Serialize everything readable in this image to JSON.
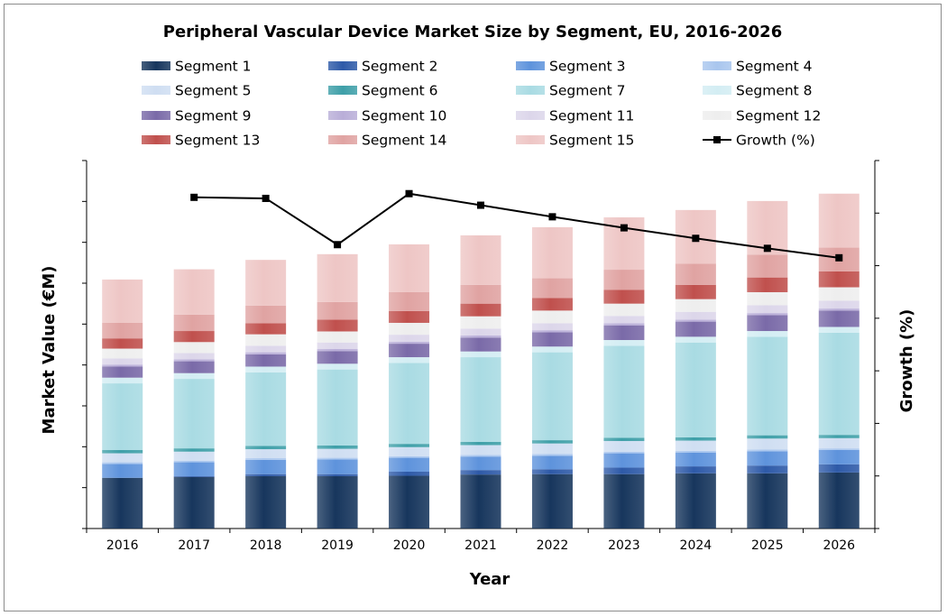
{
  "chart_data": {
    "type": "bar",
    "stacked": true,
    "title": "Peripheral Vascular Device Market Size by Segment, EU, 2016-2026",
    "xlabel": "Year",
    "ylabel": "Market Value (€M)",
    "y2label": "Growth (%)",
    "y_tick_labels_visible": false,
    "y2_tick_labels_visible": false,
    "ylim": [
      0,
      9
    ],
    "y2lim": [
      0,
      7
    ],
    "legend_position": "top",
    "categories": [
      "2016",
      "2017",
      "2018",
      "2019",
      "2020",
      "2021",
      "2022",
      "2023",
      "2024",
      "2025",
      "2026"
    ],
    "series": [
      {
        "name": "Segment 1",
        "color": "#17365d",
        "values": [
          1.24,
          1.26,
          1.28,
          1.28,
          1.29,
          1.32,
          1.33,
          1.33,
          1.35,
          1.35,
          1.37
        ]
      },
      {
        "name": "Segment 2",
        "color": "#2e5aa8",
        "values": [
          0.0,
          0.02,
          0.05,
          0.05,
          0.1,
          0.11,
          0.12,
          0.16,
          0.17,
          0.19,
          0.2
        ]
      },
      {
        "name": "Segment 3",
        "color": "#5e93dc",
        "values": [
          0.34,
          0.34,
          0.35,
          0.36,
          0.34,
          0.33,
          0.33,
          0.35,
          0.34,
          0.35,
          0.35
        ]
      },
      {
        "name": "Segment 4",
        "color": "#a9c6ee",
        "values": [
          0.04,
          0.04,
          0.04,
          0.04,
          0.04,
          0.04,
          0.04,
          0.04,
          0.04,
          0.04,
          0.04
        ]
      },
      {
        "name": "Segment 5",
        "color": "#cfdef2",
        "values": [
          0.22,
          0.22,
          0.22,
          0.22,
          0.22,
          0.24,
          0.26,
          0.26,
          0.25,
          0.27,
          0.25
        ]
      },
      {
        "name": "Segment 6",
        "color": "#3e9fa8",
        "values": [
          0.08,
          0.08,
          0.08,
          0.08,
          0.08,
          0.08,
          0.08,
          0.08,
          0.08,
          0.08,
          0.08
        ]
      },
      {
        "name": "Segment 7",
        "color": "#a9dbe3",
        "values": [
          1.63,
          1.7,
          1.8,
          1.86,
          1.98,
          2.07,
          2.15,
          2.25,
          2.32,
          2.41,
          2.5
        ]
      },
      {
        "name": "Segment 8",
        "color": "#d3edf3",
        "values": [
          0.14,
          0.14,
          0.14,
          0.14,
          0.14,
          0.14,
          0.14,
          0.14,
          0.14,
          0.14,
          0.14
        ]
      },
      {
        "name": "Segment 9",
        "color": "#7a6aa8",
        "values": [
          0.27,
          0.29,
          0.3,
          0.31,
          0.33,
          0.34,
          0.35,
          0.36,
          0.37,
          0.39,
          0.4
        ]
      },
      {
        "name": "Segment 10",
        "color": "#b9aed8",
        "values": [
          0.05,
          0.05,
          0.05,
          0.05,
          0.05,
          0.05,
          0.05,
          0.05,
          0.05,
          0.05,
          0.05
        ]
      },
      {
        "name": "Segment 11",
        "color": "#dcd6ea",
        "values": [
          0.15,
          0.15,
          0.16,
          0.16,
          0.17,
          0.17,
          0.17,
          0.18,
          0.19,
          0.19,
          0.19
        ]
      },
      {
        "name": "Segment 12",
        "color": "#eeeeee",
        "values": [
          0.24,
          0.27,
          0.28,
          0.27,
          0.29,
          0.3,
          0.31,
          0.3,
          0.31,
          0.32,
          0.33
        ]
      },
      {
        "name": "Segment 13",
        "color": "#c0504d",
        "values": [
          0.25,
          0.27,
          0.27,
          0.29,
          0.29,
          0.31,
          0.31,
          0.34,
          0.35,
          0.36,
          0.39
        ]
      },
      {
        "name": "Segment 14",
        "color": "#e0a3a2",
        "values": [
          0.38,
          0.4,
          0.43,
          0.43,
          0.46,
          0.46,
          0.48,
          0.49,
          0.52,
          0.56,
          0.58
        ]
      },
      {
        "name": "Segment 15",
        "color": "#eec6c5",
        "values": [
          1.06,
          1.11,
          1.12,
          1.17,
          1.17,
          1.21,
          1.25,
          1.28,
          1.31,
          1.31,
          1.32
        ]
      }
    ],
    "line_series": {
      "name": "Growth (%)",
      "axis": "right",
      "color": "#000000",
      "values": [
        null,
        6.3,
        6.28,
        5.4,
        6.37,
        6.15,
        5.93,
        5.72,
        5.52,
        5.33,
        5.15
      ]
    }
  }
}
